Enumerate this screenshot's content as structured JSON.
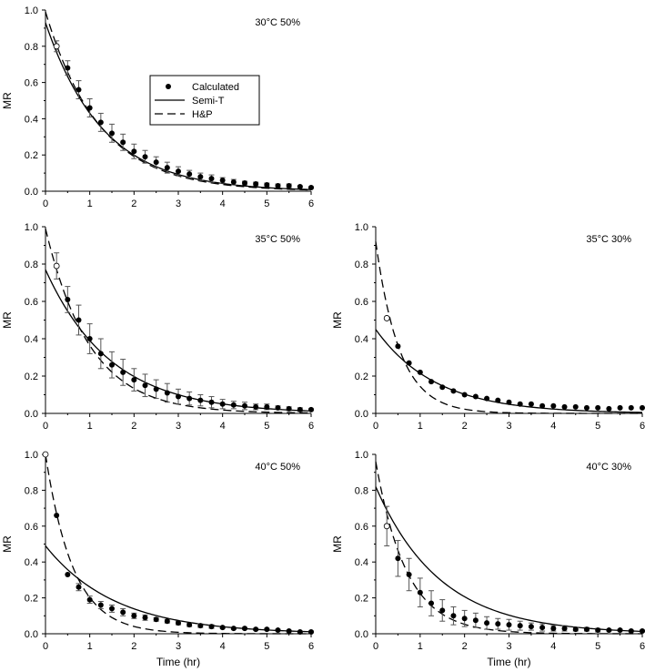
{
  "figure": {
    "x_axis_label": "Time (hr)",
    "y_axis_label": "MR"
  },
  "legend": {
    "calculated": "Calculated",
    "semi_t": "Semi-T",
    "hp": "H&P"
  },
  "chart_data": [
    {
      "type": "scatter",
      "label": "30°C 50%",
      "xlabel": "",
      "ylabel": "MR",
      "xlim": [
        0,
        6
      ],
      "ylim": [
        0,
        1
      ],
      "x_ticks": [
        "0",
        "1",
        "2",
        "3",
        "4",
        "5",
        "6"
      ],
      "y_ticks": [
        "0.0",
        "0.2",
        "0.4",
        "0.6",
        "0.8",
        "1.0"
      ],
      "has_legend": true,
      "legend_position": "center-left",
      "points": {
        "x": [
          0.25,
          0.5,
          0.75,
          1,
          1.25,
          1.5,
          1.75,
          2,
          2.25,
          2.5,
          2.75,
          3,
          3.25,
          3.5,
          3.75,
          4,
          4.25,
          4.5,
          4.75,
          5,
          5.25,
          5.5,
          5.75,
          6
        ],
        "y": [
          0.8,
          0.68,
          0.56,
          0.46,
          0.38,
          0.32,
          0.27,
          0.22,
          0.19,
          0.16,
          0.13,
          0.11,
          0.095,
          0.08,
          0.07,
          0.06,
          0.05,
          0.045,
          0.04,
          0.035,
          0.03,
          0.03,
          0.025,
          0.02
        ],
        "err": [
          0.03,
          0.04,
          0.05,
          0.05,
          0.05,
          0.05,
          0.045,
          0.04,
          0.035,
          0.03,
          0.03,
          0.025,
          0.02,
          0.02,
          0.02,
          0.015,
          0.015,
          0.01,
          0.01,
          0.01,
          0.01,
          0.01,
          0.005,
          0.005
        ],
        "open_first": true
      },
      "semi_t": {
        "a": 0.93,
        "k": 0.77
      },
      "hp": {
        "a": 0.99,
        "k": 0.82
      }
    },
    {
      "type": "scatter",
      "label": "35°C 50%",
      "xlabel": "",
      "ylabel": "MR",
      "xlim": [
        0,
        6
      ],
      "ylim": [
        0,
        1
      ],
      "x_ticks": [
        "0",
        "1",
        "2",
        "3",
        "4",
        "5",
        "6"
      ],
      "y_ticks": [
        "0.0",
        "0.2",
        "0.4",
        "0.6",
        "0.8",
        "1.0"
      ],
      "has_legend": false,
      "points": {
        "x": [
          0.25,
          0.5,
          0.75,
          1,
          1.25,
          1.5,
          1.75,
          2,
          2.25,
          2.5,
          2.75,
          3,
          3.25,
          3.5,
          3.75,
          4,
          4.25,
          4.5,
          4.75,
          5,
          5.25,
          5.5,
          5.75,
          6
        ],
        "y": [
          0.79,
          0.61,
          0.5,
          0.4,
          0.32,
          0.26,
          0.22,
          0.18,
          0.15,
          0.13,
          0.11,
          0.09,
          0.08,
          0.07,
          0.06,
          0.05,
          0.045,
          0.04,
          0.035,
          0.035,
          0.03,
          0.025,
          0.02,
          0.02
        ],
        "err": [
          0.07,
          0.07,
          0.08,
          0.08,
          0.08,
          0.07,
          0.07,
          0.06,
          0.06,
          0.05,
          0.05,
          0.04,
          0.035,
          0.03,
          0.03,
          0.025,
          0.02,
          0.02,
          0.015,
          0.015,
          0.01,
          0.01,
          0.01,
          0.005
        ],
        "open_first": true
      },
      "semi_t": {
        "a": 0.77,
        "k": 0.68
      },
      "hp": {
        "a": 0.99,
        "k": 1.0
      }
    },
    {
      "type": "scatter",
      "label": "35°C 30%",
      "xlabel": "",
      "ylabel": "MR",
      "xlim": [
        0,
        6
      ],
      "ylim": [
        0,
        1
      ],
      "x_ticks": [
        "0",
        "1",
        "2",
        "3",
        "4",
        "5",
        "6"
      ],
      "y_ticks": [
        "0.0",
        "0.2",
        "0.4",
        "0.6",
        "0.8",
        "1.0"
      ],
      "has_legend": false,
      "points": {
        "x": [
          0.25,
          0.5,
          0.75,
          1,
          1.25,
          1.5,
          1.75,
          2,
          2.25,
          2.5,
          2.75,
          3,
          3.25,
          3.5,
          3.75,
          4,
          4.25,
          4.5,
          4.75,
          5,
          5.25,
          5.5,
          5.75,
          6
        ],
        "y": [
          0.51,
          0.36,
          0.27,
          0.22,
          0.17,
          0.14,
          0.12,
          0.1,
          0.09,
          0.08,
          0.07,
          0.06,
          0.05,
          0.05,
          0.04,
          0.04,
          0.035,
          0.035,
          0.03,
          0.03,
          0.025,
          0.03,
          0.03,
          0.03
        ],
        "err": [
          0,
          0,
          0,
          0,
          0,
          0,
          0,
          0,
          0,
          0,
          0,
          0,
          0,
          0,
          0,
          0,
          0,
          0,
          0,
          0,
          0,
          0,
          0,
          0
        ],
        "open_first": true
      },
      "semi_t": {
        "a": 0.45,
        "k": 0.74
      },
      "hp": {
        "a": 0.92,
        "k": 1.85
      }
    },
    {
      "type": "scatter",
      "label": "40°C 50%",
      "xlabel": "Time (hr)",
      "ylabel": "MR",
      "xlim": [
        0,
        6
      ],
      "ylim": [
        0,
        1
      ],
      "x_ticks": [
        "0",
        "1",
        "2",
        "3",
        "4",
        "5",
        "6"
      ],
      "y_ticks": [
        "0.0",
        "0.2",
        "0.4",
        "0.6",
        "0.8",
        "1.0"
      ],
      "has_legend": false,
      "points": {
        "x": [
          0,
          0.25,
          0.5,
          0.75,
          1,
          1.25,
          1.5,
          1.75,
          2,
          2.25,
          2.5,
          2.75,
          3,
          3.25,
          3.5,
          3.75,
          4,
          4.25,
          4.5,
          4.75,
          5,
          5.25,
          5.5,
          5.75,
          6
        ],
        "y": [
          1.0,
          0.66,
          0.33,
          0.26,
          0.19,
          0.16,
          0.14,
          0.12,
          0.1,
          0.09,
          0.08,
          0.07,
          0.06,
          0.05,
          0.045,
          0.04,
          0.035,
          0.03,
          0.03,
          0.025,
          0.025,
          0.02,
          0.015,
          0.01,
          0.01
        ],
        "err": [
          0,
          0,
          0,
          0.02,
          0.02,
          0.02,
          0.02,
          0.02,
          0.015,
          0.015,
          0.01,
          0.01,
          0.01,
          0.01,
          0.01,
          0.01,
          0.005,
          0.005,
          0.005,
          0.005,
          0.005,
          0.005,
          0.005,
          0.005,
          0.005
        ],
        "open_first": true
      },
      "semi_t": {
        "a": 0.49,
        "k": 0.63
      },
      "hp": {
        "a": 1.0,
        "k": 1.6
      }
    },
    {
      "type": "scatter",
      "label": "40°C 30%",
      "xlabel": "Time (hr)",
      "ylabel": "MR",
      "xlim": [
        0,
        6
      ],
      "ylim": [
        0,
        1
      ],
      "x_ticks": [
        "0",
        "1",
        "2",
        "3",
        "4",
        "5",
        "6"
      ],
      "y_ticks": [
        "0.0",
        "0.2",
        "0.4",
        "0.6",
        "0.8",
        "1.0"
      ],
      "has_legend": false,
      "points": {
        "x": [
          0.25,
          0.5,
          0.75,
          1,
          1.25,
          1.5,
          1.75,
          2,
          2.25,
          2.5,
          2.75,
          3,
          3.25,
          3.5,
          3.75,
          4,
          4.25,
          4.5,
          4.75,
          5,
          5.25,
          5.5,
          5.75,
          6
        ],
        "y": [
          0.6,
          0.42,
          0.33,
          0.23,
          0.17,
          0.13,
          0.1,
          0.085,
          0.075,
          0.06,
          0.055,
          0.05,
          0.045,
          0.04,
          0.035,
          0.03,
          0.03,
          0.025,
          0.025,
          0.02,
          0.02,
          0.02,
          0.015,
          0.015
        ],
        "err": [
          0.11,
          0.1,
          0.09,
          0.08,
          0.07,
          0.06,
          0.05,
          0.045,
          0.04,
          0.035,
          0.03,
          0.03,
          0.025,
          0.02,
          0.02,
          0.015,
          0.015,
          0.01,
          0.01,
          0.01,
          0.005,
          0.005,
          0.005,
          0.005
        ],
        "open_first": true
      },
      "semi_t": {
        "a": 0.82,
        "k": 0.69
      },
      "hp": {
        "a": 0.96,
        "k": 1.45
      }
    }
  ]
}
